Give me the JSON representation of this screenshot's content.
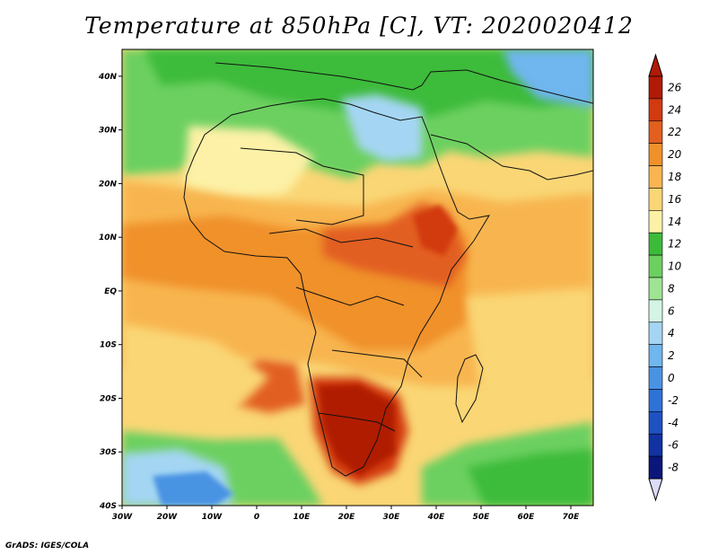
{
  "title": "Temperature at 850hPa [C], VT: 2020020412",
  "footer": "GrADS: IGES/COLA",
  "map": {
    "lon_range": [
      -30,
      75
    ],
    "lat_range": [
      -40,
      45
    ],
    "xticks": [
      {
        "value": -30,
        "label": "30W"
      },
      {
        "value": -20,
        "label": "20W"
      },
      {
        "value": -10,
        "label": "10W"
      },
      {
        "value": 0,
        "label": "0"
      },
      {
        "value": 10,
        "label": "10E"
      },
      {
        "value": 20,
        "label": "20E"
      },
      {
        "value": 30,
        "label": "30E"
      },
      {
        "value": 40,
        "label": "40E"
      },
      {
        "value": 50,
        "label": "50E"
      },
      {
        "value": 60,
        "label": "60E"
      },
      {
        "value": 70,
        "label": "70E"
      }
    ],
    "yticks": [
      {
        "value": 40,
        "label": "40N"
      },
      {
        "value": 30,
        "label": "30N"
      },
      {
        "value": 20,
        "label": "20N"
      },
      {
        "value": 10,
        "label": "10N"
      },
      {
        "value": 0,
        "label": "EQ"
      },
      {
        "value": -10,
        "label": "10S"
      },
      {
        "value": -20,
        "label": "20S"
      },
      {
        "value": -30,
        "label": "30S"
      },
      {
        "value": -40,
        "label": "40S"
      }
    ]
  },
  "colorbar": {
    "levels": [
      {
        "label": "26",
        "color": "#b01a06"
      },
      {
        "label": "24",
        "color": "#d23a10"
      },
      {
        "label": "22",
        "color": "#e25f20"
      },
      {
        "label": "20",
        "color": "#f0912a"
      },
      {
        "label": "18",
        "color": "#f8b550"
      },
      {
        "label": "16",
        "color": "#fad675"
      },
      {
        "label": "14",
        "color": "#fcf1a6"
      },
      {
        "label": "12",
        "color": "#3cbb3a"
      },
      {
        "label": "10",
        "color": "#6cd060"
      },
      {
        "label": "8",
        "color": "#9ee492"
      },
      {
        "label": "6",
        "color": "#d4f5e6"
      },
      {
        "label": "4",
        "color": "#a4d6f3"
      },
      {
        "label": "2",
        "color": "#70b6ef"
      },
      {
        "label": "0",
        "color": "#4a93e3"
      },
      {
        "label": "-2",
        "color": "#2f72d7"
      },
      {
        "label": "-4",
        "color": "#1d52c2"
      },
      {
        "label": "-6",
        "color": "#1232a2"
      },
      {
        "label": "-8",
        "color": "#0a167a"
      }
    ],
    "top_arrow_color": "#b01a06",
    "bottom_arrow_color": "#dcdcf8"
  },
  "field_zones": [
    {
      "name": "northern-background",
      "color": "#9ee492"
    },
    {
      "name": "sahara-warm",
      "color": "#fcf1a6"
    },
    {
      "name": "tropical-atlantic",
      "color": "#f8b550"
    },
    {
      "name": "central-africa",
      "color": "#f0912a"
    },
    {
      "name": "east-africa-hot",
      "color": "#e25f20"
    },
    {
      "name": "kalahari-hot",
      "color": "#b01a06"
    },
    {
      "name": "southern-ocean",
      "color": "#6cd060"
    },
    {
      "name": "cold-pool",
      "color": "#4a93e3"
    }
  ]
}
